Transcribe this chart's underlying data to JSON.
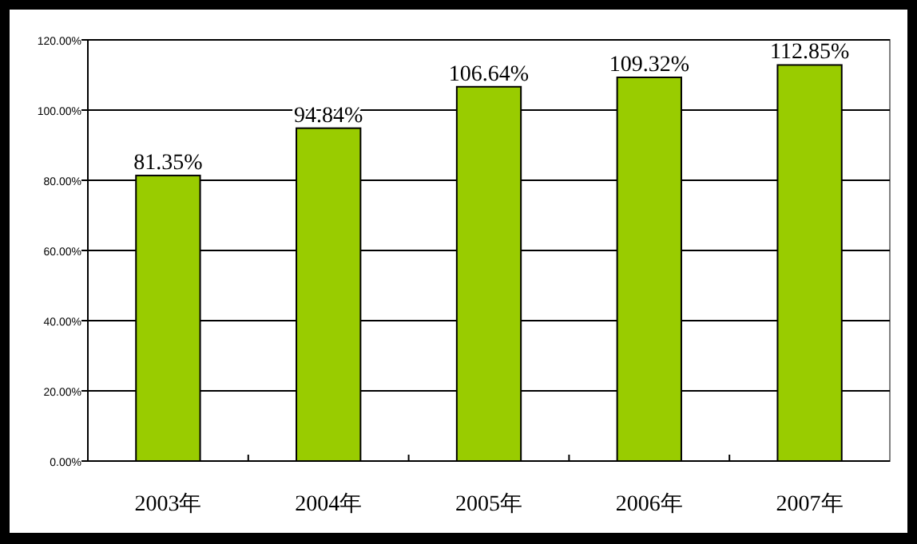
{
  "chart_data": {
    "type": "bar",
    "categories": [
      "2003年",
      "2004年",
      "2005年",
      "2006年",
      "2007年"
    ],
    "values": [
      81.35,
      94.84,
      106.64,
      109.32,
      112.85
    ],
    "color": "#99cc00",
    "value_labels": [
      "81.35%",
      "94.84%",
      "106.64%",
      "109.32%",
      "112.85%"
    ],
    "ylim": [
      0,
      120
    ],
    "yticks": [
      {
        "value": 0,
        "label": "0.00%"
      },
      {
        "value": 20,
        "label": "20.00%"
      },
      {
        "value": 40,
        "label": "40.00%"
      },
      {
        "value": 60,
        "label": "60.00%"
      },
      {
        "value": 80,
        "label": "80.00%"
      },
      {
        "value": 100,
        "label": "100.00%"
      },
      {
        "value": 120,
        "label": "120.00%"
      }
    ],
    "grid": "y"
  }
}
